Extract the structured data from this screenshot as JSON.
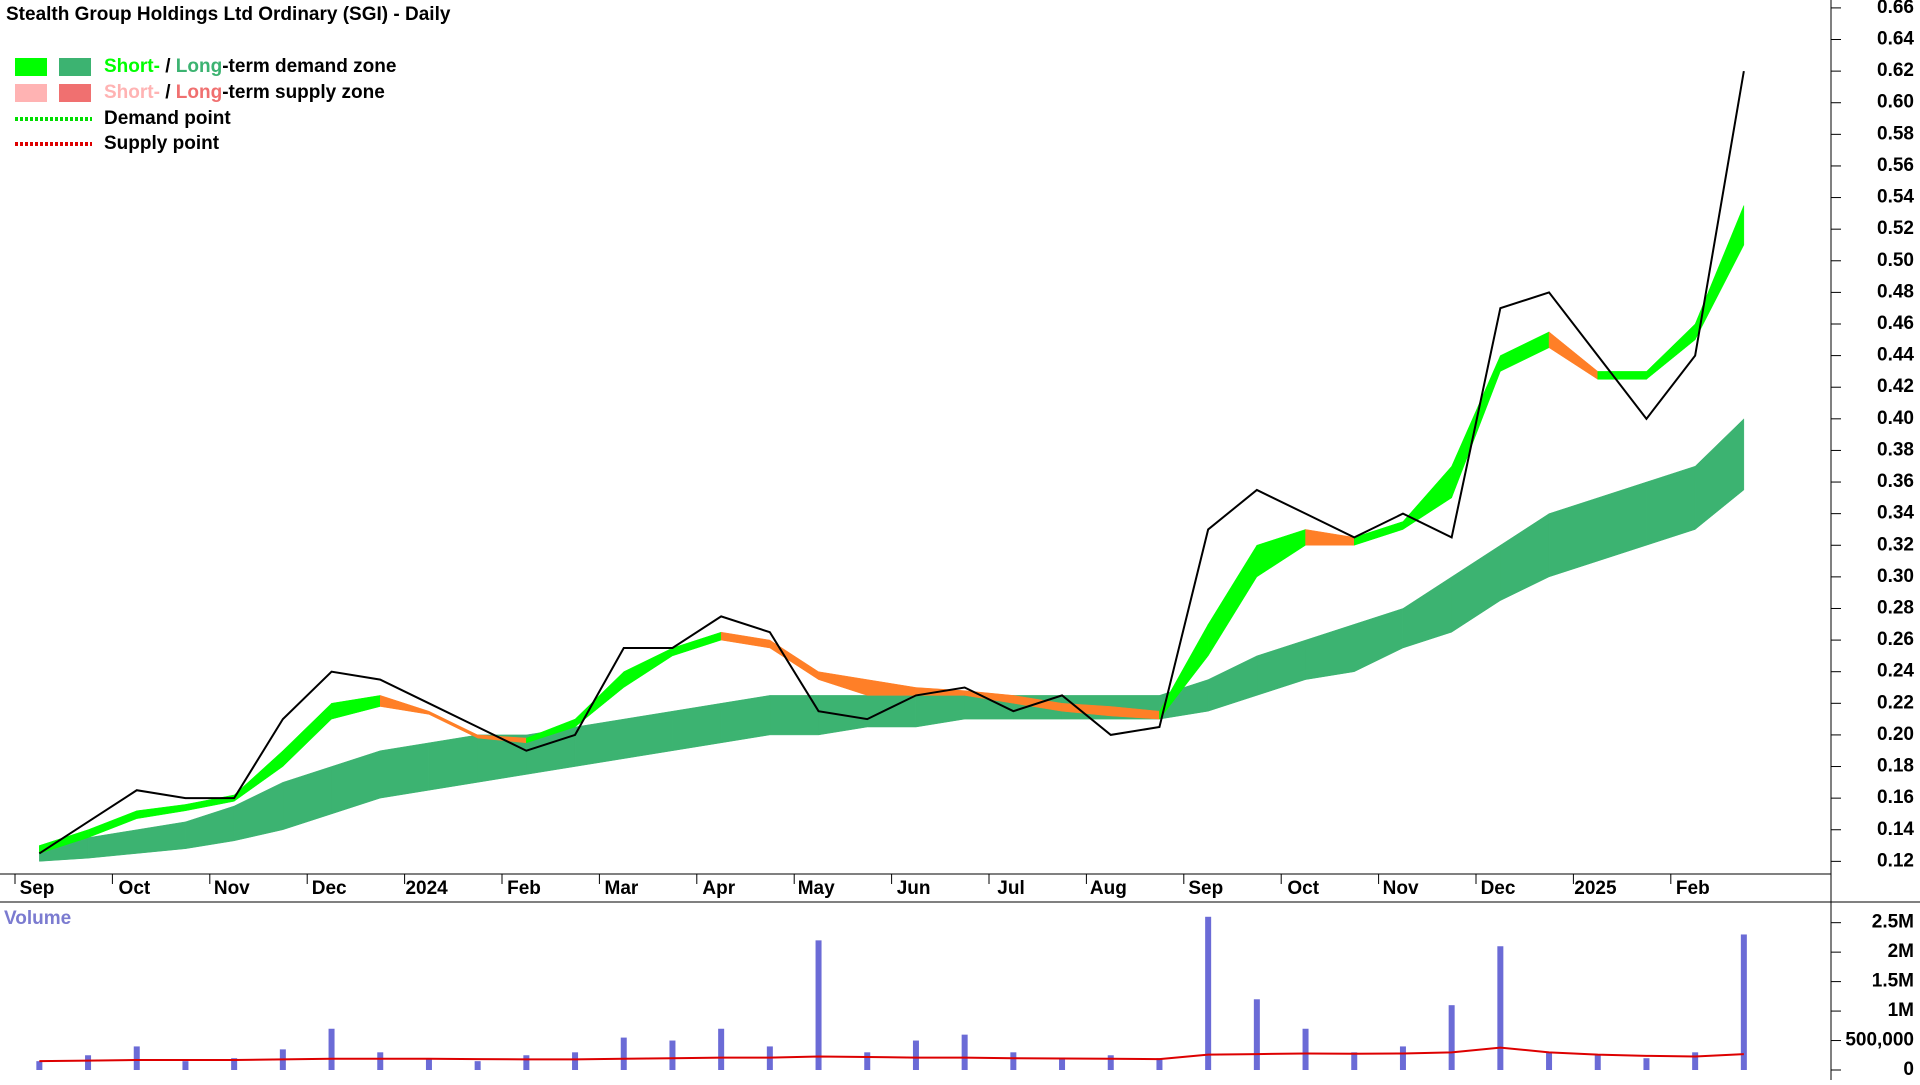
{
  "chart_data": [
    {
      "type": "line",
      "title": "Stealth Group Holdings Ltd Ordinary (SGI) - Daily",
      "legend": [
        {
          "parts": [
            "Short-",
            " / ",
            "Long",
            "-term demand zone"
          ]
        },
        {
          "parts": [
            "Short-",
            " / ",
            "Long",
            "-term supply zone"
          ]
        },
        {
          "parts": [
            "Demand point"
          ]
        },
        {
          "parts": [
            "Supply point"
          ]
        }
      ],
      "colors": {
        "close": "#000000",
        "short_demand": "#00ff00",
        "long_demand": "#3cb371",
        "short_supply": "#ffb3b3",
        "long_supply": "#f07070",
        "supply_active": "#ff7f27",
        "demand_point": "#00dd00",
        "supply_point": "#dd0000"
      },
      "categories": [
        "Sep",
        null,
        "Oct",
        null,
        "Nov",
        null,
        "Dec",
        null,
        "2024",
        null,
        "Feb",
        null,
        "Mar",
        null,
        "Apr",
        null,
        "May",
        null,
        "Jun",
        null,
        "Jul",
        null,
        "Aug",
        null,
        "Sep",
        null,
        "Oct",
        null,
        "Nov",
        null,
        "Dec",
        null,
        "2025",
        null,
        "Feb",
        null
      ],
      "close": [
        0.125,
        0.145,
        0.165,
        0.16,
        0.16,
        0.21,
        0.24,
        0.235,
        0.22,
        0.205,
        0.19,
        0.2,
        0.255,
        0.255,
        0.275,
        0.265,
        0.215,
        0.21,
        0.225,
        0.23,
        0.215,
        0.225,
        0.2,
        0.205,
        0.33,
        0.355,
        0.34,
        0.325,
        0.34,
        0.325,
        0.47,
        0.48,
        0.44,
        0.4,
        0.44,
        0.62
      ],
      "short_upper": [
        0.13,
        0.14,
        0.152,
        0.156,
        0.162,
        0.19,
        0.22,
        0.225,
        0.215,
        0.2,
        0.198,
        0.21,
        0.24,
        0.255,
        0.265,
        0.26,
        0.24,
        0.235,
        0.23,
        0.228,
        0.225,
        0.22,
        0.218,
        0.215,
        0.27,
        0.32,
        0.33,
        0.325,
        0.335,
        0.37,
        0.44,
        0.455,
        0.43,
        0.43,
        0.46,
        0.535
      ],
      "short_lower": [
        0.125,
        0.135,
        0.147,
        0.152,
        0.158,
        0.18,
        0.21,
        0.218,
        0.213,
        0.198,
        0.195,
        0.205,
        0.23,
        0.25,
        0.26,
        0.255,
        0.235,
        0.225,
        0.225,
        0.225,
        0.22,
        0.215,
        0.212,
        0.21,
        0.25,
        0.3,
        0.32,
        0.32,
        0.33,
        0.35,
        0.43,
        0.445,
        0.425,
        0.425,
        0.45,
        0.51
      ],
      "long_upper": [
        0.13,
        0.135,
        0.14,
        0.145,
        0.155,
        0.17,
        0.18,
        0.19,
        0.195,
        0.2,
        0.2,
        0.205,
        0.21,
        0.215,
        0.22,
        0.225,
        0.225,
        0.225,
        0.225,
        0.225,
        0.225,
        0.225,
        0.225,
        0.225,
        0.235,
        0.25,
        0.26,
        0.27,
        0.28,
        0.3,
        0.32,
        0.34,
        0.35,
        0.36,
        0.37,
        0.4
      ],
      "long_lower": [
        0.12,
        0.122,
        0.125,
        0.128,
        0.133,
        0.14,
        0.15,
        0.16,
        0.165,
        0.17,
        0.175,
        0.18,
        0.185,
        0.19,
        0.195,
        0.2,
        0.2,
        0.205,
        0.205,
        0.21,
        0.21,
        0.21,
        0.21,
        0.21,
        0.215,
        0.225,
        0.235,
        0.24,
        0.255,
        0.265,
        0.285,
        0.3,
        0.31,
        0.32,
        0.33,
        0.355
      ],
      "ylim": [
        0.112,
        0.665
      ],
      "yticks": [
        0.12,
        0.14,
        0.16,
        0.18,
        {
          "value": 0.2,
          "label": "0.20"
        },
        0.22,
        0.24,
        0.26,
        0.28,
        {
          "value": 0.3,
          "label": "0.30"
        },
        0.32,
        0.34,
        0.36,
        0.38,
        {
          "value": 0.4,
          "label": "0.40"
        },
        0.42,
        0.44,
        0.46,
        0.48,
        {
          "value": 0.5,
          "label": "0.50"
        },
        0.52,
        0.54,
        0.56,
        0.58,
        {
          "value": 0.6,
          "label": "0.60"
        },
        0.62,
        0.64,
        0.66
      ]
    },
    {
      "type": "bar",
      "title": "Volume",
      "color": "#6b6bd6",
      "average_color": "#dd0000",
      "values": [
        150000,
        250000,
        400000,
        150000,
        200000,
        350000,
        700000,
        300000,
        200000,
        150000,
        250000,
        300000,
        550000,
        500000,
        700000,
        400000,
        2200000,
        300000,
        500000,
        600000,
        300000,
        200000,
        250000,
        200000,
        2600000,
        1200000,
        700000,
        300000,
        400000,
        1100000,
        2100000,
        300000,
        250000,
        200000,
        300000,
        2300000
      ],
      "average": [
        150000,
        160000,
        170000,
        170000,
        170000,
        180000,
        190000,
        190000,
        190000,
        185000,
        180000,
        180000,
        190000,
        200000,
        210000,
        210000,
        230000,
        220000,
        210000,
        210000,
        200000,
        195000,
        190000,
        185000,
        260000,
        270000,
        280000,
        275000,
        280000,
        300000,
        380000,
        300000,
        260000,
        240000,
        230000,
        270000
      ],
      "ylim": [
        0,
        2800000
      ],
      "yticks": [
        0,
        {
          "value": 500000,
          "label": "500,000"
        },
        {
          "value": 1000000,
          "label": "1M"
        },
        {
          "value": 1500000,
          "label": "1.5M"
        },
        {
          "value": 2000000,
          "label": "2M"
        },
        {
          "value": 2500000,
          "label": "2.5M"
        }
      ]
    }
  ]
}
